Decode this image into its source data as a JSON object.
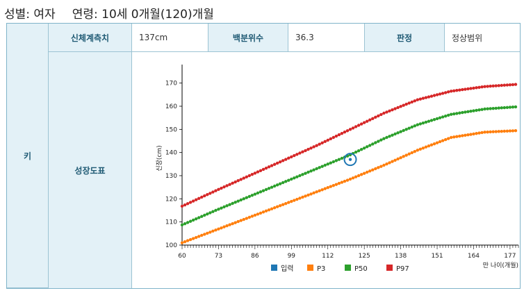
{
  "header": {
    "sex_label": "성별",
    "sex_value": "여자",
    "age_label": "연령",
    "age_value": "10세 0개월(120)개월"
  },
  "table": {
    "row_label": "키",
    "measure_label": "신체계측치",
    "measure_value": "137cm",
    "percentile_label": "백분위수",
    "percentile_value": "36.3",
    "judgement_label": "판정",
    "judgement_value": "정상범위",
    "chart_label": "성장도표"
  },
  "chart_data": {
    "type": "line",
    "xlabel": "만 나이(개월)",
    "ylabel": "신장(cm)",
    "xlim": [
      60,
      180
    ],
    "ylim": [
      100,
      175
    ],
    "xticks": [
      60,
      73,
      86,
      99,
      112,
      125,
      138,
      151,
      164,
      177
    ],
    "yticks": [
      100,
      110,
      120,
      130,
      140,
      150,
      160,
      170
    ],
    "legend_placement": "bottom",
    "series": [
      {
        "name": "입력",
        "color": "#1f77b4",
        "points": [
          [
            120,
            137
          ]
        ]
      },
      {
        "name": "P3",
        "color": "#ff7f0e",
        "x": [
          60,
          72,
          84,
          96,
          108,
          120,
          132,
          144,
          156,
          168,
          180
        ],
        "y": [
          101,
          106.5,
          112,
          117.5,
          123,
          128.5,
          134.5,
          141,
          146.5,
          148.8,
          149.5
        ]
      },
      {
        "name": "P50",
        "color": "#2ca02c",
        "x": [
          60,
          72,
          84,
          96,
          108,
          120,
          132,
          144,
          156,
          168,
          180
        ],
        "y": [
          108.7,
          115,
          121,
          127,
          133,
          139,
          146,
          152,
          156.5,
          158.8,
          159.8
        ]
      },
      {
        "name": "P97",
        "color": "#d62728",
        "x": [
          60,
          72,
          84,
          96,
          108,
          120,
          132,
          144,
          156,
          168,
          180
        ],
        "y": [
          116.8,
          123.5,
          130,
          136.5,
          143,
          150,
          157,
          162.8,
          166.5,
          168.5,
          169.5
        ]
      }
    ]
  }
}
